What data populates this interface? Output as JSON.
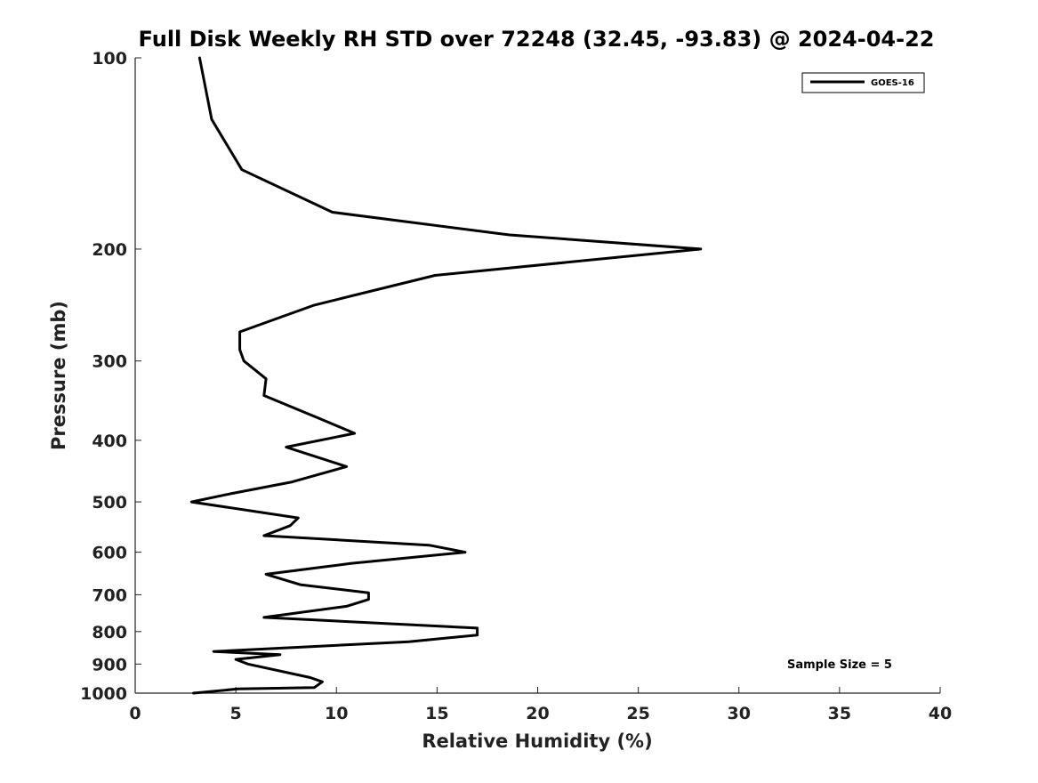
{
  "chart_data": {
    "type": "line",
    "title": "Full Disk Weekly RH STD over 72248 (32.45, -93.83) @ 2024-04-22",
    "xlabel": "Relative Humidity (%)",
    "ylabel": "Pressure (mb)",
    "xlim": [
      0,
      40
    ],
    "ylim": [
      100,
      1000
    ],
    "y_scale": "log",
    "y_reversed": true,
    "x_ticks": [
      "0",
      "5",
      "10",
      "15",
      "20",
      "25",
      "30",
      "35",
      "40"
    ],
    "y_ticks": [
      "100",
      "200",
      "300",
      "400",
      "500",
      "600",
      "700",
      "800",
      "900",
      "1000"
    ],
    "grid": false,
    "legend_position": "top-right",
    "series": [
      {
        "name": "GOES-16",
        "color": "#000000",
        "points": [
          [
            3.2,
            100
          ],
          [
            3.8,
            125
          ],
          [
            5.3,
            150
          ],
          [
            9.8,
            175
          ],
          [
            18.6,
            190
          ],
          [
            28.1,
            200
          ],
          [
            14.9,
            220
          ],
          [
            8.9,
            245
          ],
          [
            5.2,
            270
          ],
          [
            5.2,
            288
          ],
          [
            5.4,
            300
          ],
          [
            6.5,
            320
          ],
          [
            6.4,
            340
          ],
          [
            9.2,
            370
          ],
          [
            10.9,
            390
          ],
          [
            7.5,
            410
          ],
          [
            10.5,
            440
          ],
          [
            7.8,
            465
          ],
          [
            4.8,
            485
          ],
          [
            2.8,
            500
          ],
          [
            8.1,
            530
          ],
          [
            7.7,
            545
          ],
          [
            6.4,
            565
          ],
          [
            14.6,
            585
          ],
          [
            16.4,
            600
          ],
          [
            10.7,
            625
          ],
          [
            6.5,
            650
          ],
          [
            8.2,
            675
          ],
          [
            11.6,
            695
          ],
          [
            11.6,
            712
          ],
          [
            10.5,
            730
          ],
          [
            6.4,
            760
          ],
          [
            17.0,
            790
          ],
          [
            17.0,
            810
          ],
          [
            13.6,
            830
          ],
          [
            3.9,
            860
          ],
          [
            7.2,
            870
          ],
          [
            5.0,
            885
          ],
          [
            5.6,
            900
          ],
          [
            8.7,
            945
          ],
          [
            9.3,
            960
          ],
          [
            8.9,
            980
          ],
          [
            5.1,
            985
          ],
          [
            2.9,
            1000
          ]
        ]
      }
    ],
    "annotations": [
      {
        "text": "Sample Size = 5",
        "x": 36,
        "y": 900
      }
    ]
  }
}
